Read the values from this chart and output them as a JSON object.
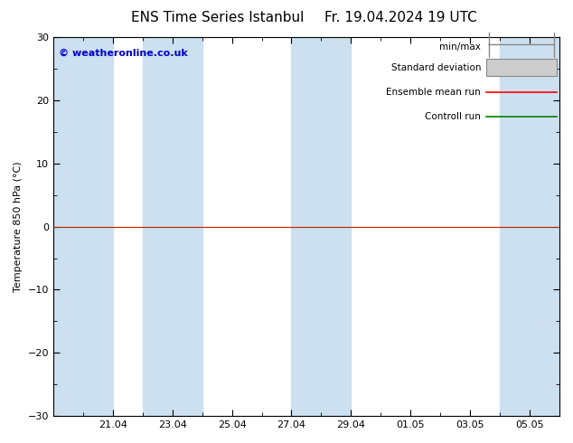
{
  "title_left": "ENS Time Series Istanbul",
  "title_right": "Fr. 19.04.2024 19 UTC",
  "ylabel": "Temperature 850 hPa (°C)",
  "ylim": [
    -30,
    30
  ],
  "yticks": [
    -30,
    -20,
    -10,
    0,
    10,
    20,
    30
  ],
  "x_tick_labels": [
    "21.04",
    "23.04",
    "25.04",
    "27.04",
    "29.04",
    "01.05",
    "03.05",
    "05.05"
  ],
  "x_tick_positions": [
    2,
    4,
    6,
    8,
    10,
    12,
    14,
    16
  ],
  "x_minor_tick_step": 1,
  "x_range": [
    0,
    17
  ],
  "shaded_bands": [
    [
      0,
      2
    ],
    [
      3,
      5
    ],
    [
      8,
      10
    ],
    [
      15,
      17
    ]
  ],
  "shaded_color": "#cce0f0",
  "zero_line_color": "#008000",
  "ensemble_line_color": "#ff0000",
  "control_line_color": "#008000",
  "bg_color": "#ffffff",
  "watermark": "© weatheronline.co.uk",
  "watermark_color": "#0000cc",
  "legend_labels": [
    "min/max",
    "Standard deviation",
    "Ensemble mean run",
    "Controll run"
  ],
  "minmax_color": "#888888",
  "stddev_color": "#aaaaaa",
  "title_fontsize": 11,
  "tick_fontsize": 8,
  "label_fontsize": 8,
  "legend_fontsize": 7.5
}
